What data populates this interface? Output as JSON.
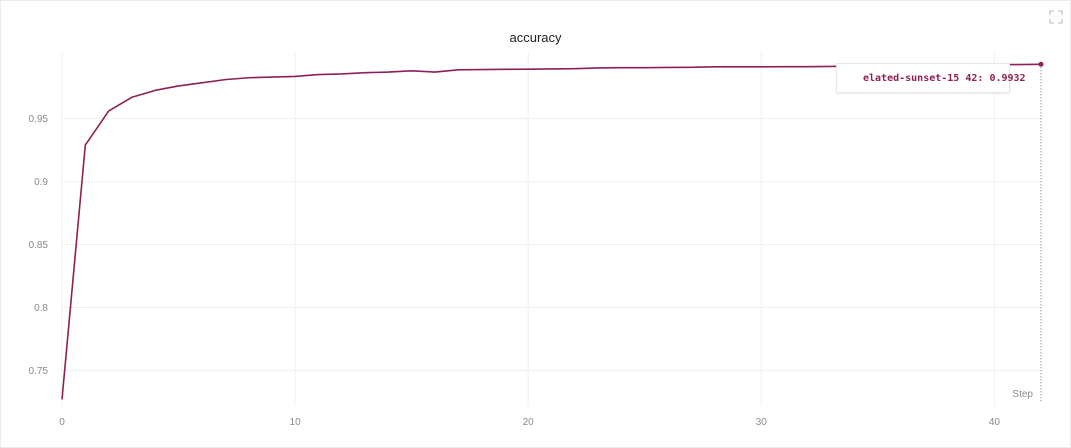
{
  "panel": {
    "expand_icon": "expand-icon"
  },
  "colors": {
    "series": "#8e2055",
    "grid": "#f0f0f0",
    "tick": "#8a8a8a"
  },
  "legend": {
    "run_name": "elated-sunset-15",
    "step": "42",
    "value": "0.9932"
  },
  "chart_data": {
    "type": "line",
    "title": "accuracy",
    "xlabel": "Step",
    "ylabel": "",
    "xlim": [
      0,
      42
    ],
    "ylim": [
      0.725,
      0.995
    ],
    "x_ticks": [
      0,
      10,
      20,
      30,
      40
    ],
    "y_ticks": [
      0.75,
      0.8,
      0.85,
      0.9,
      0.95
    ],
    "y_tick_labels": [
      "0.75",
      "0.8",
      "0.85",
      "0.9",
      "0.95"
    ],
    "grid": true,
    "legend_position": "top-right",
    "series": [
      {
        "name": "elated-sunset-15",
        "x": [
          0,
          1,
          2,
          3,
          4,
          5,
          6,
          7,
          8,
          9,
          10,
          11,
          12,
          13,
          14,
          15,
          16,
          17,
          18,
          19,
          20,
          21,
          22,
          23,
          24,
          25,
          26,
          27,
          28,
          29,
          30,
          31,
          32,
          33,
          34,
          35,
          36,
          37,
          38,
          39,
          40,
          41,
          42
        ],
        "values": [
          0.727,
          0.929,
          0.956,
          0.967,
          0.9725,
          0.976,
          0.9785,
          0.981,
          0.9825,
          0.983,
          0.9835,
          0.985,
          0.9855,
          0.9865,
          0.987,
          0.988,
          0.987,
          0.9888,
          0.989,
          0.9892,
          0.9893,
          0.9895,
          0.9897,
          0.9903,
          0.9905,
          0.9905,
          0.9907,
          0.9908,
          0.9912,
          0.9912,
          0.9912,
          0.9913,
          0.9913,
          0.9915,
          0.9918,
          0.992,
          0.992,
          0.9922,
          0.9925,
          0.9927,
          0.993,
          0.993,
          0.9932
        ]
      }
    ]
  }
}
